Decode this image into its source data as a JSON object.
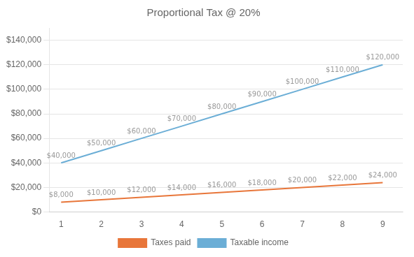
{
  "chart_data": {
    "type": "line",
    "title": "Proportional Tax @ 20%",
    "x": [
      1,
      2,
      3,
      4,
      5,
      6,
      7,
      8,
      9
    ],
    "series": [
      {
        "name": "Taxes paid",
        "color": "#E8763A",
        "values": [
          8000,
          10000,
          12000,
          14000,
          16000,
          18000,
          20000,
          22000,
          24000
        ],
        "value_labels": [
          "$8,000",
          "$10,000",
          "$12,000",
          "$14,000",
          "$16,000",
          "$18,000",
          "$20,000",
          "$22,000",
          "$24,000"
        ]
      },
      {
        "name": "Taxable income",
        "color": "#6BAED6",
        "values": [
          40000,
          50000,
          60000,
          70000,
          80000,
          90000,
          100000,
          110000,
          120000
        ],
        "value_labels": [
          "$40,000",
          "$50,000",
          "$60,000",
          "$70,000",
          "$80,000",
          "$90,000",
          "$100,000",
          "$110,000",
          "$120,000"
        ]
      }
    ],
    "xlim": [
      0.7,
      9.5
    ],
    "xticks": [
      1,
      2,
      3,
      4,
      5,
      6,
      7,
      8,
      9
    ],
    "ylim": [
      0,
      150000
    ],
    "yticks": [
      {
        "value": 0,
        "label": "$0"
      },
      {
        "value": 20000,
        "label": "$20,000"
      },
      {
        "value": 40000,
        "label": "$40,000"
      },
      {
        "value": 60000,
        "label": "$60,000"
      },
      {
        "value": 80000,
        "label": "$80,000"
      },
      {
        "value": 100000,
        "label": "$100,000"
      },
      {
        "value": 120000,
        "label": "$120,000"
      },
      {
        "value": 140000,
        "label": "$140,000"
      }
    ],
    "grid": true,
    "legend": "bottom",
    "data_labels": true
  }
}
